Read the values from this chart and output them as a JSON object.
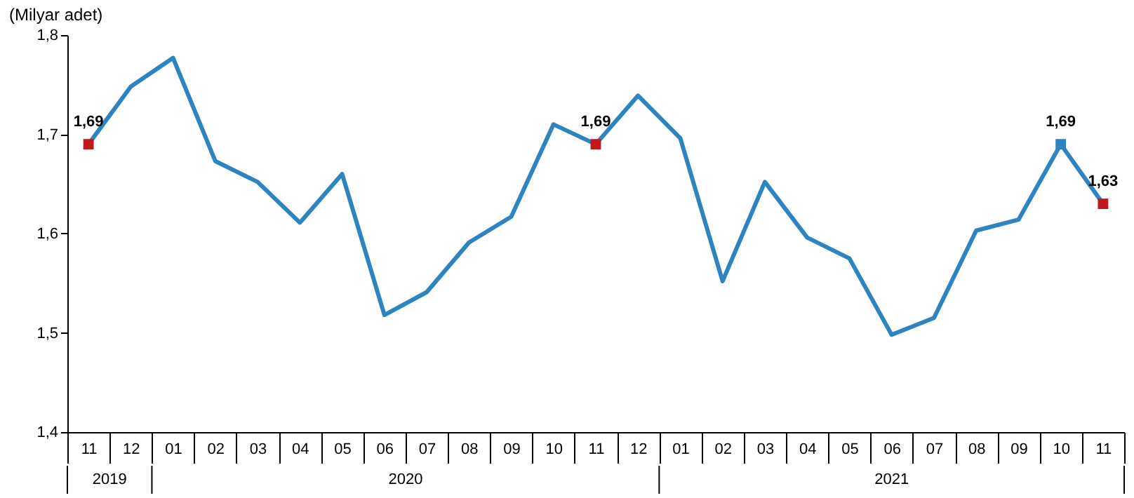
{
  "chart_data": {
    "type": "line",
    "ylabel": "(Milyar adet)",
    "categories": [
      "11",
      "12",
      "01",
      "02",
      "03",
      "04",
      "05",
      "06",
      "07",
      "08",
      "09",
      "10",
      "11",
      "12",
      "01",
      "02",
      "03",
      "04",
      "05",
      "06",
      "07",
      "08",
      "09",
      "10",
      "11"
    ],
    "series": [
      {
        "color": "#2e83c1",
        "values": [
          1.69,
          1.748,
          1.777,
          1.673,
          1.652,
          1.611,
          1.66,
          1.518,
          1.541,
          1.591,
          1.617,
          1.71,
          1.69,
          1.739,
          1.696,
          1.552,
          1.652,
          1.596,
          1.575,
          1.498,
          1.515,
          1.603,
          1.614,
          1.69,
          1.63
        ],
        "value_labels": [
          "1,69",
          null,
          null,
          null,
          null,
          null,
          null,
          null,
          null,
          null,
          null,
          null,
          "1,69",
          null,
          null,
          null,
          null,
          null,
          null,
          null,
          null,
          null,
          null,
          "1,69",
          "1,63"
        ],
        "colors": [
          "#c0181f",
          null,
          null,
          null,
          null,
          null,
          null,
          null,
          null,
          null,
          null,
          null,
          "#c0181f",
          null,
          null,
          null,
          null,
          null,
          null,
          null,
          null,
          null,
          null,
          "#2e83c1",
          "#c0181f"
        ]
      }
    ],
    "annotations": [
      "2019",
      "2020",
      "2021"
    ],
    "ylim": [
      1.4,
      1.8
    ],
    "yticks": [
      {
        "value": 1.4,
        "label": "1,4"
      },
      {
        "value": 1.5,
        "label": "1,5"
      },
      {
        "value": 1.6,
        "label": "1,6"
      },
      {
        "value": 1.7,
        "label": "1,7"
      },
      {
        "value": 1.8,
        "label": "1,8"
      }
    ],
    "grid": false,
    "legend": false
  }
}
